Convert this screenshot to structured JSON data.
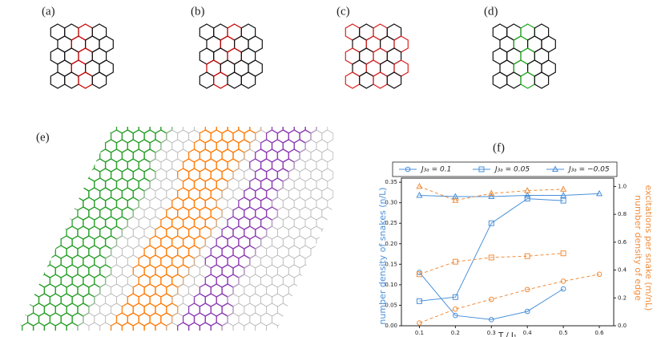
{
  "panels": [
    "(a)",
    "(b)",
    "(c)",
    "(d)",
    "(e)",
    "(f)"
  ],
  "chart_data": {
    "type": "line",
    "xlabel": "T / J₁",
    "ylabel": "number density of snakes (n/L)",
    "y2label": [
      "number density of edge",
      "excitations per snake (m/nL)"
    ],
    "color": "#4a90d9",
    "color2": "#f08c3a",
    "x": [
      0.1,
      0.2,
      0.3,
      0.4,
      0.5,
      0.6
    ],
    "xlim": [
      0.05,
      0.64
    ],
    "xticks": [
      0.1,
      0.2,
      0.3,
      0.4,
      0.5,
      0.6
    ],
    "ylim": [
      0,
      0.36
    ],
    "yticks": [
      {
        "value": 0,
        "label": "0.00"
      },
      0.05,
      {
        "value": 0.1,
        "label": "0.10"
      },
      0.15,
      {
        "value": 0.2,
        "label": "0.20"
      },
      0.25,
      {
        "value": 0.3,
        "label": "0.30"
      },
      0.35
    ],
    "y2lim": [
      0,
      1.06
    ],
    "y2ticks": [
      {
        "value": 0,
        "label": "0.0"
      },
      0.2,
      0.4,
      0.6,
      0.8,
      {
        "value": 1,
        "label": "1.0"
      }
    ],
    "series": [
      {
        "name": "J₃ₐ = 0.1",
        "marker": "circle",
        "values": [
          0.13,
          0.025,
          0.015,
          0.035,
          0.09,
          null
        ],
        "edge_values": [
          0.02,
          0.12,
          0.19,
          0.26,
          0.32,
          0.37
        ]
      },
      {
        "name": "J₃ₐ = 0.05",
        "marker": "square",
        "values": [
          0.06,
          0.07,
          0.25,
          0.31,
          0.305,
          null
        ],
        "edge_values": [
          0.37,
          0.46,
          0.49,
          0.5,
          0.52,
          null
        ]
      },
      {
        "name": "J₃ₐ = −0.05",
        "marker": "triangle",
        "values": [
          0.318,
          0.315,
          0.315,
          0.318,
          0.318,
          0.322
        ],
        "edge_values": [
          1.0,
          0.9,
          0.95,
          0.97,
          0.98,
          null
        ]
      }
    ]
  }
}
